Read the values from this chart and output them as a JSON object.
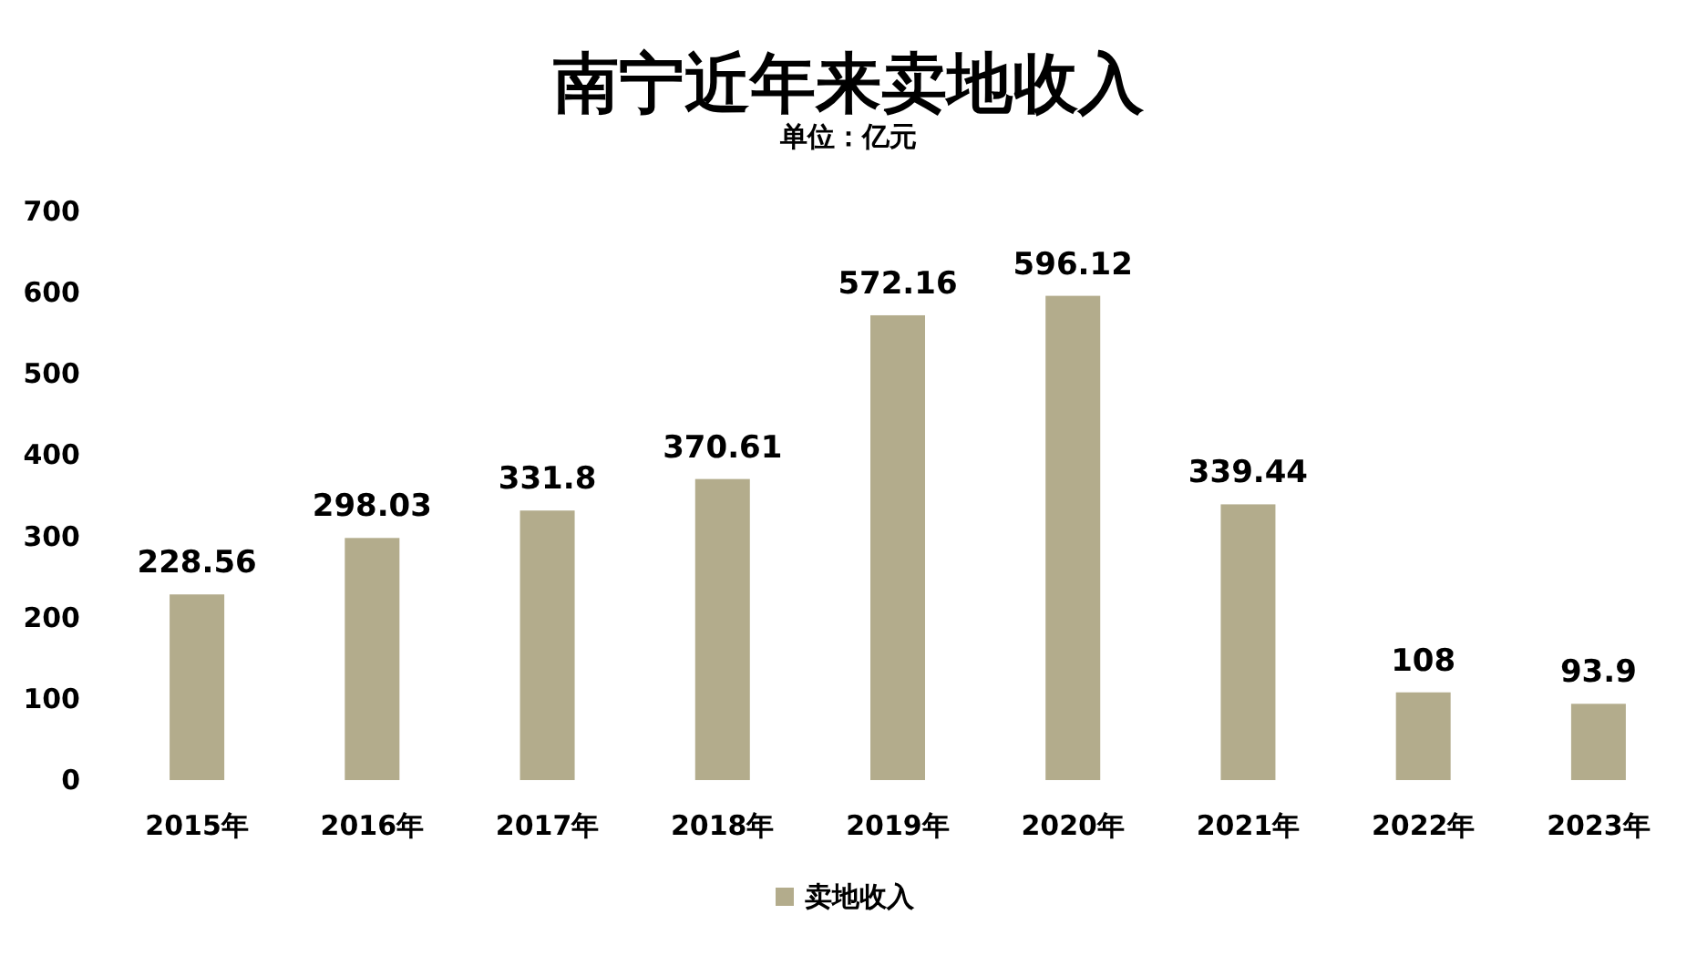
{
  "chart_data": {
    "type": "bar",
    "title": "南宁近年来卖地收入",
    "subtitle": "单位：亿元",
    "categories": [
      "2015年",
      "2016年",
      "2017年",
      "2018年",
      "2019年",
      "2020年",
      "2021年",
      "2022年",
      "2023年"
    ],
    "series": [
      {
        "name": "卖地收入",
        "color": "#b3ac8c",
        "values": [
          228.56,
          298.03,
          331.8,
          370.61,
          572.16,
          596.12,
          339.44,
          108,
          93.9
        ]
      }
    ],
    "ylim": [
      0,
      700
    ],
    "yticks": [
      0,
      100,
      200,
      300,
      400,
      500,
      600,
      700
    ],
    "data_labels": true,
    "legend": "bottom",
    "grid": false
  }
}
